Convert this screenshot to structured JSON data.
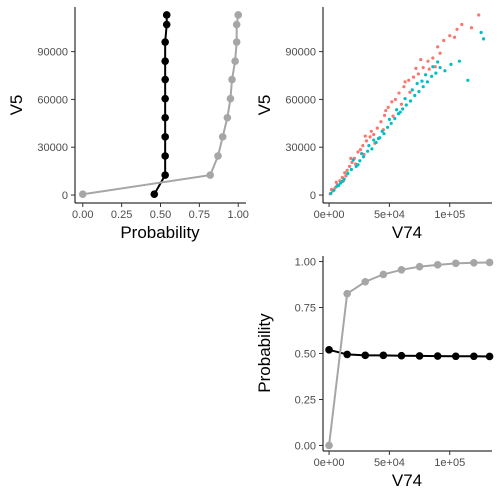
{
  "colors": {
    "black_series": "#000000",
    "grey_series": "#a6a6a6",
    "scatter_red": "#f8766d",
    "scatter_teal": "#00bfc4"
  },
  "chart_data": [
    {
      "id": "top-left",
      "type": "line",
      "xlabel": "Probability",
      "ylabel": "V5",
      "xlim": [
        -0.05,
        1.05
      ],
      "ylim": [
        -5000,
        118000
      ],
      "x_ticks": [
        0,
        0.25,
        0.5,
        0.75,
        1
      ],
      "x_tick_labels": [
        "0.00",
        "0.25",
        "0.50",
        "0.75",
        "1.00"
      ],
      "y_ticks": [
        0,
        30000,
        60000,
        90000
      ],
      "y_tick_labels": [
        "0",
        "30000",
        "60000",
        "90000"
      ],
      "grid": false,
      "series": [
        {
          "color": "black_series",
          "points": [
            [
              0.46,
              500
            ],
            [
              0.53,
              12500
            ],
            [
              0.53,
              24500
            ],
            [
              0.53,
              36500
            ],
            [
              0.53,
              48500
            ],
            [
              0.53,
              60500
            ],
            [
              0.53,
              72500
            ],
            [
              0.53,
              84000
            ],
            [
              0.53,
              96000
            ],
            [
              0.54,
              107000
            ],
            [
              0.54,
              113000
            ]
          ]
        },
        {
          "color": "grey_series",
          "points": [
            [
              0.0,
              500
            ],
            [
              0.82,
              12500
            ],
            [
              0.87,
              24500
            ],
            [
              0.9,
              36500
            ],
            [
              0.93,
              48500
            ],
            [
              0.95,
              60500
            ],
            [
              0.96,
              72500
            ],
            [
              0.98,
              84000
            ],
            [
              0.99,
              96000
            ],
            [
              0.99,
              107000
            ],
            [
              1.0,
              113000
            ]
          ]
        }
      ]
    },
    {
      "id": "top-right",
      "type": "scatter",
      "xlabel": "V74",
      "ylabel": "V5",
      "xlim": [
        -5000,
        135000
      ],
      "ylim": [
        -5000,
        118000
      ],
      "x_ticks": [
        0,
        50000,
        100000
      ],
      "x_tick_labels": [
        "0e+00",
        "5e+04",
        "1e+05"
      ],
      "y_ticks": [
        0,
        30000,
        60000,
        90000
      ],
      "y_tick_labels": [
        "0",
        "30000",
        "60000",
        "90000"
      ],
      "grid": false,
      "series": [
        {
          "color": "scatter_red",
          "points": [
            [
              1000,
              800
            ],
            [
              3000,
              2500
            ],
            [
              5000,
              4500
            ],
            [
              7000,
              6500
            ],
            [
              9000,
              9000
            ],
            [
              11000,
              11000
            ],
            [
              13000,
              14000
            ],
            [
              15000,
              15500
            ],
            [
              17000,
              18000
            ],
            [
              19000,
              20500
            ],
            [
              21000,
              23000
            ],
            [
              24000,
              27000
            ],
            [
              26000,
              28500
            ],
            [
              28000,
              31000
            ],
            [
              31000,
              34000
            ],
            [
              34000,
              36500
            ],
            [
              37000,
              38000
            ],
            [
              40000,
              42000
            ],
            [
              43000,
              46000
            ],
            [
              46000,
              50000
            ],
            [
              49000,
              55000
            ],
            [
              52000,
              58500
            ],
            [
              55000,
              60000
            ],
            [
              58000,
              64000
            ],
            [
              62000,
              68000
            ],
            [
              66000,
              72000
            ],
            [
              70000,
              74000
            ],
            [
              74000,
              76000
            ],
            [
              78000,
              80000
            ],
            [
              82000,
              84000
            ],
            [
              86000,
              86000
            ],
            [
              90000,
              93000
            ],
            [
              95000,
              97000
            ],
            [
              100000,
              100000
            ],
            [
              106000,
              104000
            ],
            [
              110000,
              107000
            ],
            [
              118000,
              105000
            ],
            [
              124000,
              113000
            ],
            [
              6000,
              8000
            ],
            [
              12000,
              9000
            ],
            [
              18000,
              23000
            ],
            [
              22000,
              19500
            ],
            [
              29000,
              25500
            ],
            [
              35000,
              40000
            ],
            [
              38000,
              32500
            ],
            [
              47000,
              53000
            ],
            [
              53000,
              49500
            ],
            [
              63000,
              71000
            ],
            [
              67000,
              64500
            ],
            [
              76000,
              85000
            ],
            [
              83000,
              79000
            ],
            [
              92000,
              89000
            ],
            [
              104000,
              99000
            ],
            [
              2000,
              3500
            ],
            [
              14000,
              12000
            ],
            [
              30000,
              37000
            ],
            [
              45000,
              41000
            ],
            [
              60000,
              57000
            ],
            [
              72000,
              79500
            ],
            [
              88000,
              80500
            ]
          ]
        },
        {
          "color": "scatter_teal",
          "points": [
            [
              1500,
              1000
            ],
            [
              4000,
              3000
            ],
            [
              6500,
              5500
            ],
            [
              9500,
              7500
            ],
            [
              12500,
              10000
            ],
            [
              15500,
              13500
            ],
            [
              18500,
              16000
            ],
            [
              22500,
              18000
            ],
            [
              25500,
              21500
            ],
            [
              28500,
              24000
            ],
            [
              32000,
              27500
            ],
            [
              35500,
              29000
            ],
            [
              39000,
              33000
            ],
            [
              42000,
              36000
            ],
            [
              45500,
              38500
            ],
            [
              48500,
              42500
            ],
            [
              51500,
              45000
            ],
            [
              54500,
              48000
            ],
            [
              57500,
              51000
            ],
            [
              61000,
              54000
            ],
            [
              64000,
              56500
            ],
            [
              67500,
              59000
            ],
            [
              71000,
              62500
            ],
            [
              74500,
              65000
            ],
            [
              78000,
              68000
            ],
            [
              81500,
              71000
            ],
            [
              85000,
              74500
            ],
            [
              88500,
              76500
            ],
            [
              92000,
              80000
            ],
            [
              96000,
              78000
            ],
            [
              101000,
              82000
            ],
            [
              108000,
              84000
            ],
            [
              115000,
              72000
            ],
            [
              126000,
              102000
            ],
            [
              128000,
              98000
            ],
            [
              20000,
              22000
            ],
            [
              33000,
              31000
            ],
            [
              44000,
              40000
            ],
            [
              56000,
              53500
            ],
            [
              69000,
              66000
            ],
            [
              80000,
              75500
            ],
            [
              90000,
              83500
            ],
            [
              24000,
              19000
            ],
            [
              37000,
              34500
            ],
            [
              50000,
              47500
            ],
            [
              63000,
              60500
            ],
            [
              73000,
              70000
            ],
            [
              8000,
              6000
            ],
            [
              11000,
              8500
            ],
            [
              27000,
              26000
            ],
            [
              41000,
              35500
            ],
            [
              59000,
              52000
            ],
            [
              77000,
              71500
            ],
            [
              86000,
              80500
            ]
          ]
        }
      ]
    },
    {
      "id": "bottom-right",
      "type": "line",
      "xlabel": "V74",
      "ylabel": "Probability",
      "xlim": [
        -5000,
        135000
      ],
      "ylim": [
        -0.03,
        1.03
      ],
      "x_ticks": [
        0,
        50000,
        100000
      ],
      "x_tick_labels": [
        "0e+00",
        "5e+04",
        "1e+05"
      ],
      "y_ticks": [
        0,
        0.25,
        0.5,
        0.75,
        1
      ],
      "y_tick_labels": [
        "0.00",
        "0.25",
        "0.50",
        "0.75",
        "1.00"
      ],
      "grid": false,
      "series": [
        {
          "color": "black_series",
          "points": [
            [
              0,
              0.52
            ],
            [
              15000,
              0.495
            ],
            [
              30000,
              0.49
            ],
            [
              45000,
              0.49
            ],
            [
              60000,
              0.488
            ],
            [
              75000,
              0.487
            ],
            [
              90000,
              0.486
            ],
            [
              105000,
              0.485
            ],
            [
              120000,
              0.485
            ],
            [
              133000,
              0.484
            ]
          ]
        },
        {
          "color": "grey_series",
          "points": [
            [
              0,
              0.0
            ],
            [
              15000,
              0.825
            ],
            [
              30000,
              0.89
            ],
            [
              45000,
              0.93
            ],
            [
              60000,
              0.955
            ],
            [
              75000,
              0.972
            ],
            [
              90000,
              0.982
            ],
            [
              105000,
              0.99
            ],
            [
              120000,
              0.993
            ],
            [
              133000,
              0.995
            ]
          ]
        }
      ]
    }
  ]
}
